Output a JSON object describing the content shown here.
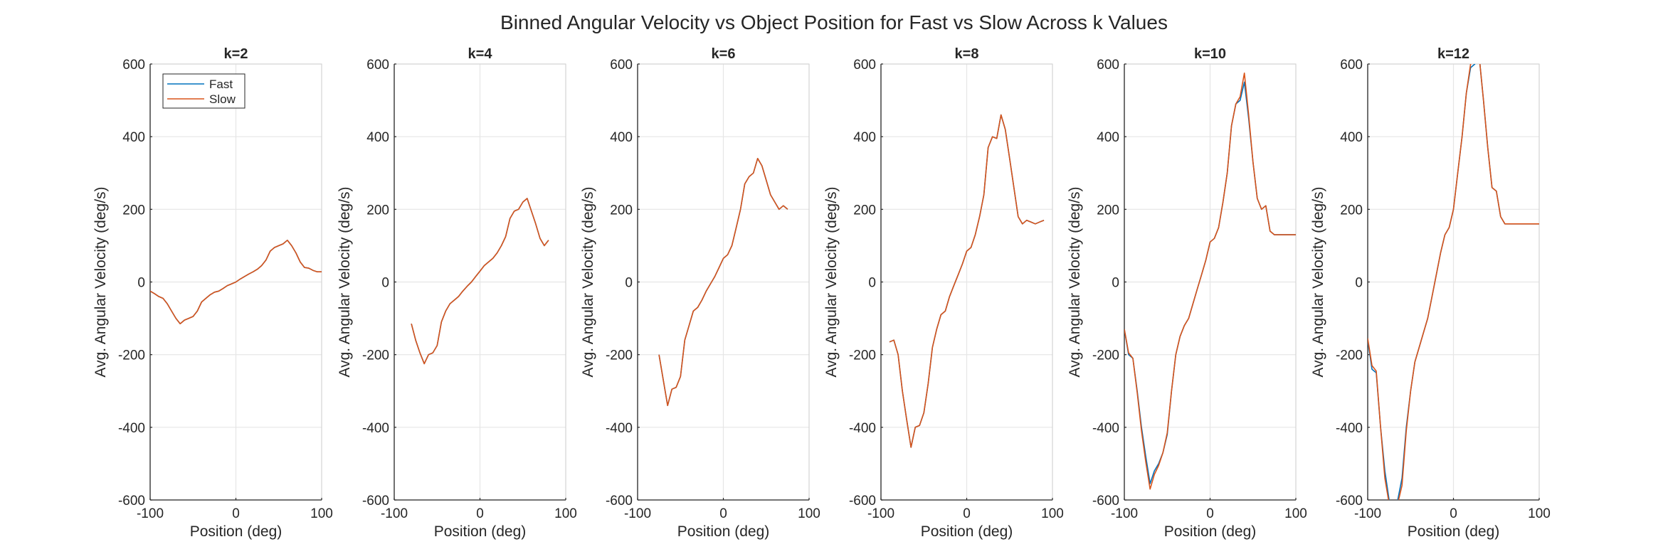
{
  "figure": {
    "title": "Binned Angular Velocity vs Object Position for Fast vs Slow Across k Values"
  },
  "legend": {
    "location": "top-left of first panel",
    "entries": [
      "Fast",
      "Slow"
    ]
  },
  "colors": {
    "fast": "#0072BD",
    "slow": "#D95319",
    "grid": "#e6e6e6",
    "axis": "#262626"
  },
  "chart_data": [
    {
      "type": "line",
      "title": "k=2",
      "xlabel": "Position (deg)",
      "ylabel": "Avg. Angular Velocity (deg/s)",
      "xlim": [
        -100,
        100
      ],
      "ylim": [
        -600,
        600
      ],
      "xticks": [
        -100,
        0,
        100
      ],
      "yticks": [
        -600,
        -400,
        -200,
        0,
        200,
        400,
        600
      ],
      "grid": true,
      "series": [
        {
          "name": "Fast",
          "x": [
            -100,
            -95,
            -90,
            -85,
            -80,
            -75,
            -70,
            -65,
            -60,
            -55,
            -50,
            -45,
            -40,
            -35,
            -30,
            -25,
            -20,
            -15,
            -10,
            -5,
            0,
            5,
            10,
            15,
            20,
            25,
            30,
            35,
            40,
            45,
            50,
            55,
            60,
            65,
            70,
            75,
            80,
            85,
            90,
            95,
            100
          ],
          "y": [
            -25,
            -32,
            -40,
            -45,
            -60,
            -80,
            -100,
            -115,
            -105,
            -100,
            -95,
            -80,
            -55,
            -45,
            -35,
            -28,
            -25,
            -18,
            -10,
            -5,
            0,
            8,
            15,
            22,
            28,
            35,
            45,
            60,
            85,
            95,
            100,
            105,
            115,
            100,
            80,
            55,
            40,
            38,
            32,
            28,
            28
          ]
        },
        {
          "name": "Slow",
          "x": [
            -100,
            -95,
            -90,
            -85,
            -80,
            -75,
            -70,
            -65,
            -60,
            -55,
            -50,
            -45,
            -40,
            -35,
            -30,
            -25,
            -20,
            -15,
            -10,
            -5,
            0,
            5,
            10,
            15,
            20,
            25,
            30,
            35,
            40,
            45,
            50,
            55,
            60,
            65,
            70,
            75,
            80,
            85,
            90,
            95,
            100
          ],
          "y": [
            -25,
            -32,
            -40,
            -45,
            -60,
            -80,
            -100,
            -115,
            -105,
            -100,
            -95,
            -80,
            -55,
            -45,
            -35,
            -28,
            -25,
            -18,
            -10,
            -5,
            0,
            8,
            15,
            22,
            28,
            35,
            45,
            60,
            85,
            95,
            100,
            105,
            115,
            100,
            80,
            55,
            40,
            38,
            32,
            28,
            28
          ]
        }
      ]
    },
    {
      "type": "line",
      "title": "k=4",
      "xlabel": "Position (deg)",
      "ylabel": "Avg. Angular Velocity (deg/s)",
      "xlim": [
        -100,
        100
      ],
      "ylim": [
        -600,
        600
      ],
      "xticks": [
        -100,
        0,
        100
      ],
      "yticks": [
        -600,
        -400,
        -200,
        0,
        200,
        400,
        600
      ],
      "grid": true,
      "series": [
        {
          "name": "Fast",
          "x": [
            -80,
            -75,
            -70,
            -65,
            -60,
            -55,
            -50,
            -45,
            -40,
            -35,
            -30,
            -25,
            -20,
            -15,
            -10,
            -5,
            0,
            5,
            10,
            15,
            20,
            25,
            30,
            35,
            40,
            45,
            50,
            55,
            60,
            65,
            70,
            75,
            80
          ],
          "y": [
            -115,
            -160,
            -195,
            -225,
            -200,
            -195,
            -175,
            -110,
            -80,
            -60,
            -50,
            -40,
            -25,
            -12,
            0,
            15,
            30,
            45,
            55,
            65,
            80,
            100,
            125,
            175,
            195,
            200,
            220,
            230,
            195,
            160,
            120,
            100,
            115
          ]
        },
        {
          "name": "Slow",
          "x": [
            -80,
            -75,
            -70,
            -65,
            -60,
            -55,
            -50,
            -45,
            -40,
            -35,
            -30,
            -25,
            -20,
            -15,
            -10,
            -5,
            0,
            5,
            10,
            15,
            20,
            25,
            30,
            35,
            40,
            45,
            50,
            55,
            60,
            65,
            70,
            75,
            80
          ],
          "y": [
            -115,
            -160,
            -195,
            -225,
            -200,
            -195,
            -175,
            -110,
            -80,
            -60,
            -50,
            -40,
            -25,
            -12,
            0,
            15,
            30,
            45,
            55,
            65,
            80,
            100,
            125,
            175,
            195,
            200,
            220,
            230,
            195,
            160,
            120,
            100,
            115
          ]
        }
      ]
    },
    {
      "type": "line",
      "title": "k=6",
      "xlabel": "Position (deg)",
      "ylabel": "Avg. Angular Velocity (deg/s)",
      "xlim": [
        -100,
        100
      ],
      "ylim": [
        -600,
        600
      ],
      "xticks": [
        -100,
        0,
        100
      ],
      "yticks": [
        -600,
        -400,
        -200,
        0,
        200,
        400,
        600
      ],
      "grid": true,
      "series": [
        {
          "name": "Fast",
          "x": [
            -75,
            -70,
            -65,
            -60,
            -55,
            -50,
            -45,
            -40,
            -35,
            -30,
            -25,
            -20,
            -15,
            -10,
            -5,
            0,
            5,
            10,
            15,
            20,
            25,
            30,
            35,
            40,
            45,
            50,
            55,
            60,
            65,
            70,
            75
          ],
          "y": [
            -200,
            -270,
            -340,
            -295,
            -290,
            -260,
            -160,
            -120,
            -80,
            -70,
            -50,
            -25,
            -5,
            15,
            40,
            65,
            75,
            100,
            150,
            200,
            270,
            290,
            300,
            340,
            320,
            280,
            240,
            220,
            200,
            210,
            200
          ]
        },
        {
          "name": "Slow",
          "x": [
            -75,
            -70,
            -65,
            -60,
            -55,
            -50,
            -45,
            -40,
            -35,
            -30,
            -25,
            -20,
            -15,
            -10,
            -5,
            0,
            5,
            10,
            15,
            20,
            25,
            30,
            35,
            40,
            45,
            50,
            55,
            60,
            65,
            70,
            75
          ],
          "y": [
            -200,
            -270,
            -340,
            -295,
            -290,
            -260,
            -160,
            -120,
            -80,
            -70,
            -50,
            -25,
            -5,
            15,
            40,
            65,
            75,
            100,
            150,
            200,
            270,
            290,
            300,
            340,
            320,
            280,
            240,
            220,
            200,
            210,
            200
          ]
        }
      ]
    },
    {
      "type": "line",
      "title": "k=8",
      "xlabel": "Position (deg)",
      "ylabel": "Avg. Angular Velocity (deg/s)",
      "xlim": [
        -100,
        100
      ],
      "ylim": [
        -600,
        600
      ],
      "xticks": [
        -100,
        0,
        100
      ],
      "yticks": [
        -600,
        -400,
        -200,
        0,
        200,
        400,
        600
      ],
      "grid": true,
      "series": [
        {
          "name": "Fast",
          "x": [
            -90,
            -85,
            -80,
            -75,
            -70,
            -65,
            -60,
            -55,
            -50,
            -45,
            -40,
            -35,
            -30,
            -25,
            -20,
            -15,
            -10,
            -5,
            0,
            5,
            10,
            15,
            20,
            25,
            30,
            35,
            40,
            45,
            50,
            55,
            60,
            65,
            70,
            75,
            80,
            85,
            90
          ],
          "y": [
            -165,
            -160,
            -200,
            -300,
            -380,
            -455,
            -400,
            -395,
            -360,
            -280,
            -180,
            -130,
            -90,
            -80,
            -40,
            -10,
            20,
            50,
            85,
            95,
            130,
            180,
            240,
            370,
            400,
            395,
            460,
            420,
            340,
            260,
            180,
            160,
            170,
            165,
            160,
            165,
            170
          ]
        },
        {
          "name": "Slow",
          "x": [
            -90,
            -85,
            -80,
            -75,
            -70,
            -65,
            -60,
            -55,
            -50,
            -45,
            -40,
            -35,
            -30,
            -25,
            -20,
            -15,
            -10,
            -5,
            0,
            5,
            10,
            15,
            20,
            25,
            30,
            35,
            40,
            45,
            50,
            55,
            60,
            65,
            70,
            75,
            80,
            85,
            90
          ],
          "y": [
            -165,
            -160,
            -200,
            -300,
            -380,
            -455,
            -400,
            -395,
            -360,
            -280,
            -180,
            -130,
            -90,
            -80,
            -40,
            -10,
            20,
            50,
            85,
            95,
            130,
            180,
            240,
            370,
            400,
            395,
            460,
            420,
            340,
            260,
            180,
            160,
            170,
            165,
            160,
            165,
            170
          ]
        }
      ]
    },
    {
      "type": "line",
      "title": "k=10",
      "xlabel": "Position (deg)",
      "ylabel": "Avg. Angular Velocity (deg/s)",
      "xlim": [
        -100,
        100
      ],
      "ylim": [
        -600,
        600
      ],
      "xticks": [
        -100,
        0,
        100
      ],
      "yticks": [
        -600,
        -400,
        -200,
        0,
        200,
        400,
        600
      ],
      "grid": true,
      "series": [
        {
          "name": "Fast",
          "x": [
            -100,
            -95,
            -90,
            -85,
            -80,
            -75,
            -70,
            -65,
            -60,
            -55,
            -50,
            -45,
            -40,
            -35,
            -30,
            -25,
            -20,
            -15,
            -10,
            -5,
            0,
            5,
            10,
            15,
            20,
            25,
            30,
            35,
            40,
            45,
            50,
            55,
            60,
            65,
            70,
            75,
            80,
            85,
            90,
            95,
            100
          ],
          "y": [
            -130,
            -200,
            -210,
            -300,
            -400,
            -480,
            -555,
            -520,
            -500,
            -470,
            -420,
            -300,
            -200,
            -150,
            -120,
            -100,
            -60,
            -20,
            20,
            60,
            110,
            120,
            150,
            220,
            300,
            430,
            490,
            500,
            550,
            450,
            330,
            230,
            200,
            210,
            140,
            130,
            130,
            130,
            130,
            130,
            130
          ]
        },
        {
          "name": "Slow",
          "x": [
            -100,
            -95,
            -90,
            -85,
            -80,
            -75,
            -70,
            -65,
            -60,
            -55,
            -50,
            -45,
            -40,
            -35,
            -30,
            -25,
            -20,
            -15,
            -10,
            -5,
            0,
            5,
            10,
            15,
            20,
            25,
            30,
            35,
            40,
            45,
            50,
            55,
            60,
            65,
            70,
            75,
            80,
            85,
            90,
            95,
            100
          ],
          "y": [
            -130,
            -195,
            -210,
            -305,
            -410,
            -495,
            -570,
            -530,
            -505,
            -470,
            -415,
            -300,
            -200,
            -150,
            -120,
            -100,
            -60,
            -20,
            20,
            60,
            110,
            120,
            150,
            220,
            300,
            430,
            490,
            510,
            575,
            460,
            330,
            230,
            200,
            210,
            140,
            130,
            130,
            130,
            130,
            130,
            130
          ]
        }
      ]
    },
    {
      "type": "line",
      "title": "k=12",
      "xlabel": "Position (deg)",
      "ylabel": "Avg. Angular Velocity (deg/s)",
      "xlim": [
        -100,
        100
      ],
      "ylim": [
        -600,
        600
      ],
      "xticks": [
        -100,
        0,
        100
      ],
      "yticks": [
        -600,
        -400,
        -200,
        0,
        200,
        400,
        600
      ],
      "grid": true,
      "series": [
        {
          "name": "Fast",
          "x": [
            -100,
            -95,
            -90,
            -85,
            -80,
            -75,
            -70,
            -65,
            -60,
            -55,
            -50,
            -45,
            -40,
            -35,
            -30,
            -25,
            -20,
            -15,
            -10,
            -5,
            0,
            5,
            10,
            15,
            20,
            25,
            30,
            35,
            40,
            45,
            50,
            55,
            60,
            65,
            70,
            75,
            80,
            85,
            90,
            95,
            100
          ],
          "y": [
            -160,
            -240,
            -250,
            -400,
            -520,
            -600,
            -610,
            -600,
            -540,
            -400,
            -300,
            -220,
            -180,
            -140,
            -100,
            -40,
            20,
            80,
            130,
            150,
            200,
            300,
            400,
            520,
            590,
            600,
            620,
            500,
            370,
            260,
            250,
            180,
            160,
            160,
            160,
            160,
            160,
            160,
            160,
            160,
            160
          ]
        },
        {
          "name": "Slow",
          "x": [
            -100,
            -95,
            -90,
            -85,
            -80,
            -75,
            -70,
            -65,
            -60,
            -55,
            -50,
            -45,
            -40,
            -35,
            -30,
            -25,
            -20,
            -15,
            -10,
            -5,
            0,
            5,
            10,
            15,
            20,
            25,
            30,
            35,
            40,
            45,
            50,
            55,
            60,
            65,
            70,
            75,
            80,
            85,
            90,
            95,
            100
          ],
          "y": [
            -155,
            -230,
            -245,
            -400,
            -540,
            -610,
            -620,
            -610,
            -560,
            -410,
            -300,
            -220,
            -180,
            -140,
            -100,
            -40,
            20,
            80,
            130,
            150,
            200,
            300,
            400,
            520,
            600,
            610,
            620,
            500,
            370,
            260,
            250,
            180,
            160,
            160,
            160,
            160,
            160,
            160,
            160,
            160,
            160
          ]
        }
      ]
    }
  ]
}
